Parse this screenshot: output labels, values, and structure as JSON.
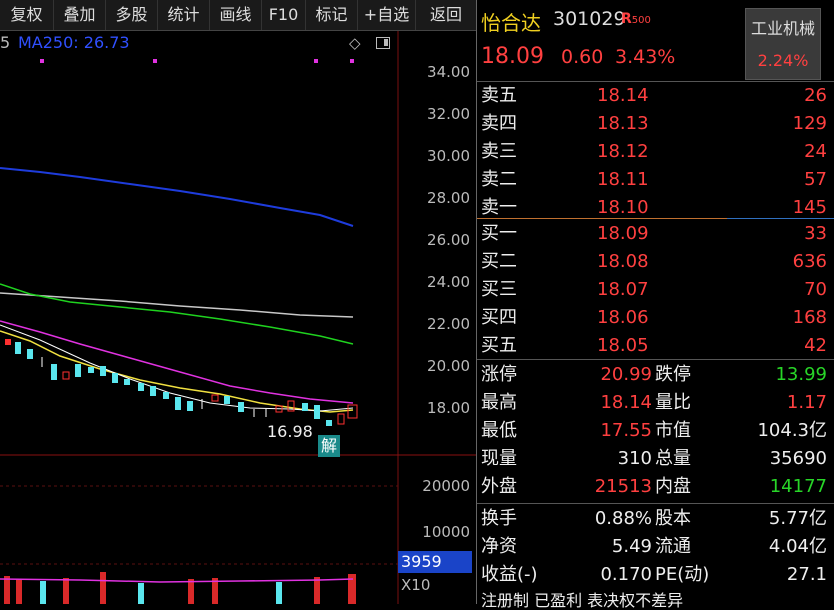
{
  "toolbar": {
    "items": [
      "复权",
      "叠加",
      "多股",
      "统计",
      "画线",
      "F10",
      "标记",
      "+自选",
      "返回"
    ]
  },
  "chart": {
    "ma_partial_label": "5",
    "ma250_label": "MA250: 26.73",
    "price_labels": [
      "34.00",
      "32.00",
      "30.00",
      "28.00",
      "26.00",
      "24.00",
      "22.00",
      "20.00",
      "18.00"
    ],
    "low_marker": "16.98",
    "jie_badge": "解",
    "volume_labels": [
      "20000",
      "10000"
    ],
    "volume_current": "3959",
    "volume_scale": "X10",
    "colors": {
      "ma250": "#1e3cdc",
      "ma_white": "#c8c8c8",
      "ma_green": "#1fd21f",
      "ma_magenta": "#e032e0",
      "ma_yellow": "#f0e040",
      "candle_down": "#5ae6ee",
      "candle_up": "#ff3030"
    }
  },
  "stock": {
    "name": "怡合达",
    "code": "301029",
    "market_tag": "R",
    "market_tag_sub": "500",
    "price": "18.09",
    "change": "0.60",
    "change_pct": "3.43%",
    "sector": "工业机械",
    "sector_pct": "2.24%"
  },
  "order_book": {
    "asks": [
      {
        "label": "卖五",
        "price": "18.14",
        "vol": "26"
      },
      {
        "label": "卖四",
        "price": "18.13",
        "vol": "129"
      },
      {
        "label": "卖三",
        "price": "18.12",
        "vol": "24"
      },
      {
        "label": "卖二",
        "price": "18.11",
        "vol": "57"
      },
      {
        "label": "卖一",
        "price": "18.10",
        "vol": "145"
      }
    ],
    "bids": [
      {
        "label": "买一",
        "price": "18.09",
        "vol": "33"
      },
      {
        "label": "买二",
        "price": "18.08",
        "vol": "636"
      },
      {
        "label": "买三",
        "price": "18.07",
        "vol": "70"
      },
      {
        "label": "买四",
        "price": "18.06",
        "vol": "168"
      },
      {
        "label": "买五",
        "price": "18.05",
        "vol": "42"
      }
    ]
  },
  "stats": {
    "limit_up_label": "涨停",
    "limit_up": "20.99",
    "limit_down_label": "跌停",
    "limit_down": "13.99",
    "high_label": "最高",
    "high": "18.14",
    "vol_ratio_label": "量比",
    "vol_ratio": "1.17",
    "low_label": "最低",
    "low": "17.55",
    "mkt_cap_label": "市值",
    "mkt_cap": "104.3亿",
    "cur_vol_label": "现量",
    "cur_vol": "310",
    "total_vol_label": "总量",
    "total_vol": "35690",
    "outer_label": "外盘",
    "outer": "21513",
    "inner_label": "内盘",
    "inner": "14177"
  },
  "fundamentals": {
    "turnover_label": "换手",
    "turnover": "0.88%",
    "equity_label": "股本",
    "equity": "5.77亿",
    "nav_label": "净资",
    "nav": "5.49",
    "float_label": "流通",
    "float": "4.04亿",
    "eps_label": "收益(-)",
    "eps": "0.170",
    "pe_label": "PE(动)",
    "pe": "27.1"
  },
  "footer_partial": "注册制 已盈利 表决权不差异"
}
